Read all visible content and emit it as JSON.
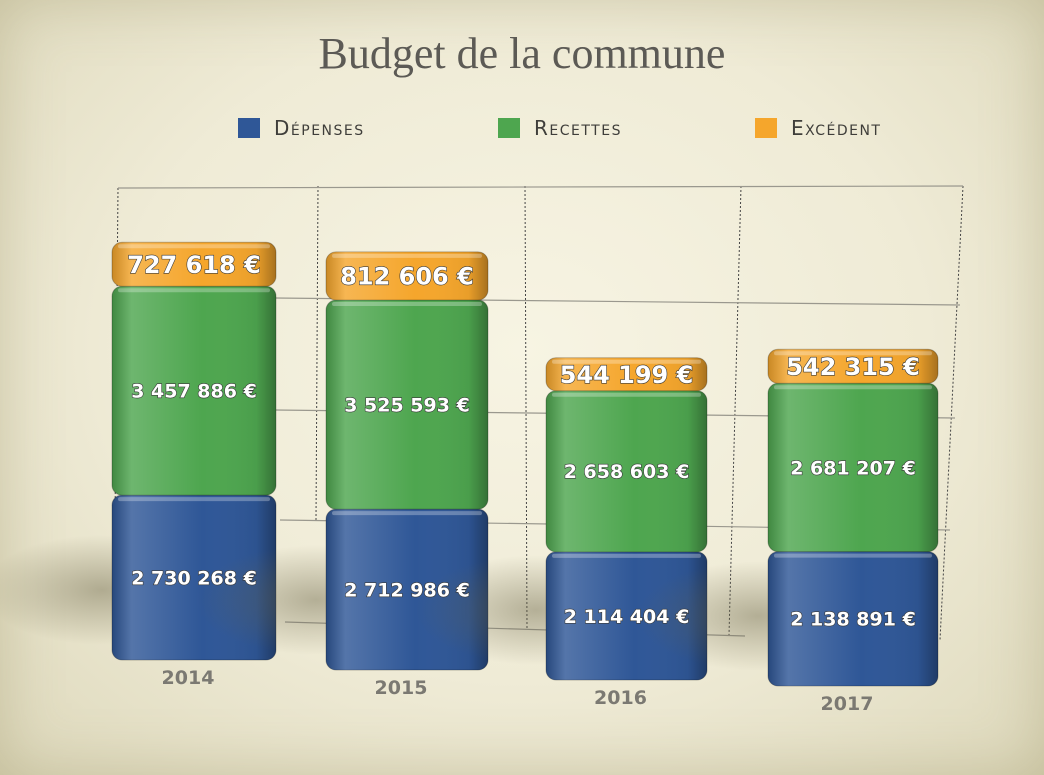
{
  "chart_data": {
    "type": "bar",
    "stacked": true,
    "title": "Budget de la commune",
    "categories": [
      "2014",
      "2015",
      "2016",
      "2017"
    ],
    "series": [
      {
        "name": "Dépenses",
        "color": "#2f5797",
        "values": [
          2730268,
          2712986,
          2114404,
          2138891
        ],
        "labels": [
          "2 730 268 €",
          "2 712 986 €",
          "2 114 404 €",
          "2 138 891 €"
        ]
      },
      {
        "name": "Recettes",
        "color": "#4ea64f",
        "values": [
          3457886,
          3525593,
          2658603,
          2681207
        ],
        "labels": [
          "3 457 886 €",
          "3 525 593 €",
          "2 658 603 €",
          "2 681 207 €"
        ]
      },
      {
        "name": "Excédent",
        "color": "#f5a62c",
        "values": [
          727618,
          812606,
          544199,
          542315
        ],
        "labels": [
          "727 618 €",
          "812 606 €",
          "544 199 €",
          "542 315 €"
        ]
      }
    ],
    "legend_position": "top",
    "grid": true
  }
}
